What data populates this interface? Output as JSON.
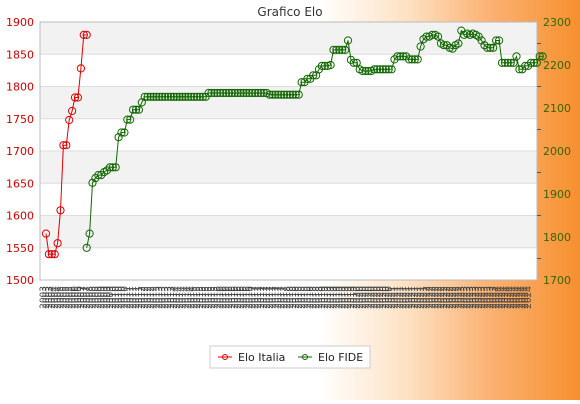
{
  "chart_data": {
    "type": "line",
    "title": "Grafico Elo",
    "legend_position": "bottom-center",
    "grid": true,
    "left_axis": {
      "ylim": [
        1500,
        1900
      ],
      "ticks": [
        1500,
        1550,
        1600,
        1650,
        1700,
        1750,
        1800,
        1850,
        1900
      ],
      "color": "#cc0000"
    },
    "right_axis": {
      "ylim": [
        1700,
        2300
      ],
      "ticks": [
        1700,
        1800,
        1900,
        2000,
        2100,
        2200,
        2300
      ],
      "color": "#336600"
    },
    "series": [
      {
        "name": "Elo Italia",
        "axis": "left",
        "color": "#dd0000",
        "values": [
          1572,
          1540,
          1540,
          1540,
          1557,
          1608,
          1709,
          1709,
          1748,
          1762,
          1783,
          1783,
          1828,
          1880,
          1880
        ]
      },
      {
        "name": "Elo FIDE",
        "axis": "right",
        "color": "#116600",
        "start_index": 14,
        "values": [
          1775,
          1808,
          1926,
          1937,
          1944,
          1944,
          1951,
          1955,
          1962,
          1962,
          1962,
          2032,
          2043,
          2043,
          2073,
          2073,
          2096,
          2096,
          2096,
          2113,
          2126,
          2126,
          2126,
          2126,
          2126,
          2126,
          2126,
          2126,
          2126,
          2126,
          2126,
          2126,
          2126,
          2126,
          2126,
          2126,
          2126,
          2126,
          2126,
          2126,
          2126,
          2126,
          2135,
          2135,
          2135,
          2135,
          2135,
          2135,
          2135,
          2135,
          2135,
          2135,
          2135,
          2135,
          2135,
          2135,
          2135,
          2135,
          2135,
          2135,
          2135,
          2135,
          2135,
          2131,
          2131,
          2131,
          2131,
          2131,
          2131,
          2131,
          2131,
          2131,
          2131,
          2131,
          2160,
          2160,
          2168,
          2168,
          2176,
          2176,
          2190,
          2198,
          2198,
          2198,
          2200,
          2235,
          2235,
          2235,
          2235,
          2235,
          2257,
          2212,
          2205,
          2205,
          2190,
          2186,
          2186,
          2186,
          2186,
          2190,
          2190,
          2190,
          2190,
          2190,
          2190,
          2190,
          2213,
          2220,
          2220,
          2220,
          2220,
          2213,
          2213,
          2213,
          2213,
          2243,
          2260,
          2266,
          2266,
          2270,
          2270,
          2266,
          2250,
          2246,
          2246,
          2240,
          2238,
          2246,
          2250,
          2280,
          2270,
          2273,
          2270,
          2273,
          2270,
          2266,
          2257,
          2246,
          2240,
          2240,
          2240,
          2257,
          2257,
          2205,
          2205,
          2205,
          2205,
          2205,
          2220,
          2190,
          2190,
          2198,
          2198,
          2205,
          2205,
          2205,
          2220,
          2220
        ]
      }
    ],
    "x_tick_labels": [
      "2003",
      "2003",
      "2003",
      "2004",
      "2004",
      "2004",
      "2005",
      "2005",
      "2005",
      "2005",
      "2006",
      "2006",
      "2006",
      "2007",
      "2007",
      "2007",
      "2008",
      "2008",
      "2008",
      "2008",
      "2009",
      "2009",
      "2009",
      "2009",
      "2010",
      "2010",
      "2010",
      "2010",
      "2010",
      "2011",
      "2011",
      "2011",
      "2011",
      "2011",
      "2012",
      "2012",
      "2012",
      "2012",
      "2012",
      "2013",
      "2013",
      "2013",
      "2013",
      "2013",
      "2013",
      "2014",
      "2014",
      "2014",
      "2014",
      "2014",
      "2014",
      "2014",
      "2015",
      "2015",
      "2015",
      "2015",
      "2015",
      "2015",
      "2015",
      "2015",
      "2016",
      "2016",
      "2016",
      "2016",
      "2016",
      "2016",
      "2016",
      "2016",
      "2016",
      "2016",
      "2016",
      "2016",
      "2017",
      "2017",
      "2017",
      "2017",
      "2017",
      "2017",
      "2017",
      "2017",
      "2017",
      "2017",
      "2017",
      "2017",
      "2018",
      "2018",
      "2018",
      "2018",
      "2018",
      "2018",
      "2018",
      "2018",
      "2018",
      "2018",
      "2018",
      "2018",
      "2019",
      "2019",
      "2019",
      "2019",
      "2019",
      "2019",
      "2019",
      "2019",
      "2019",
      "2019",
      "2019",
      "2019",
      "2020",
      "2020",
      "2020",
      "2020",
      "2020",
      "2020",
      "2020",
      "2020",
      "2020",
      "2020",
      "2020",
      "2020",
      "2021",
      "2021",
      "2021",
      "2021",
      "2021",
      "2021",
      "2021",
      "2021",
      "2021",
      "2021",
      "2021",
      "2021",
      "2022",
      "2022",
      "2022",
      "2022",
      "2022",
      "2022",
      "2022",
      "2022",
      "2022",
      "2022",
      "2022",
      "2022",
      "2023",
      "2023",
      "2023",
      "2023",
      "2023",
      "2023",
      "2023",
      "2023",
      "2023",
      "2023",
      "2023",
      "2023",
      "2024",
      "2024",
      "2024",
      "2024",
      "2024",
      "2024",
      "2024",
      "2024",
      "2024",
      "2024",
      "2024",
      "2024"
    ]
  }
}
